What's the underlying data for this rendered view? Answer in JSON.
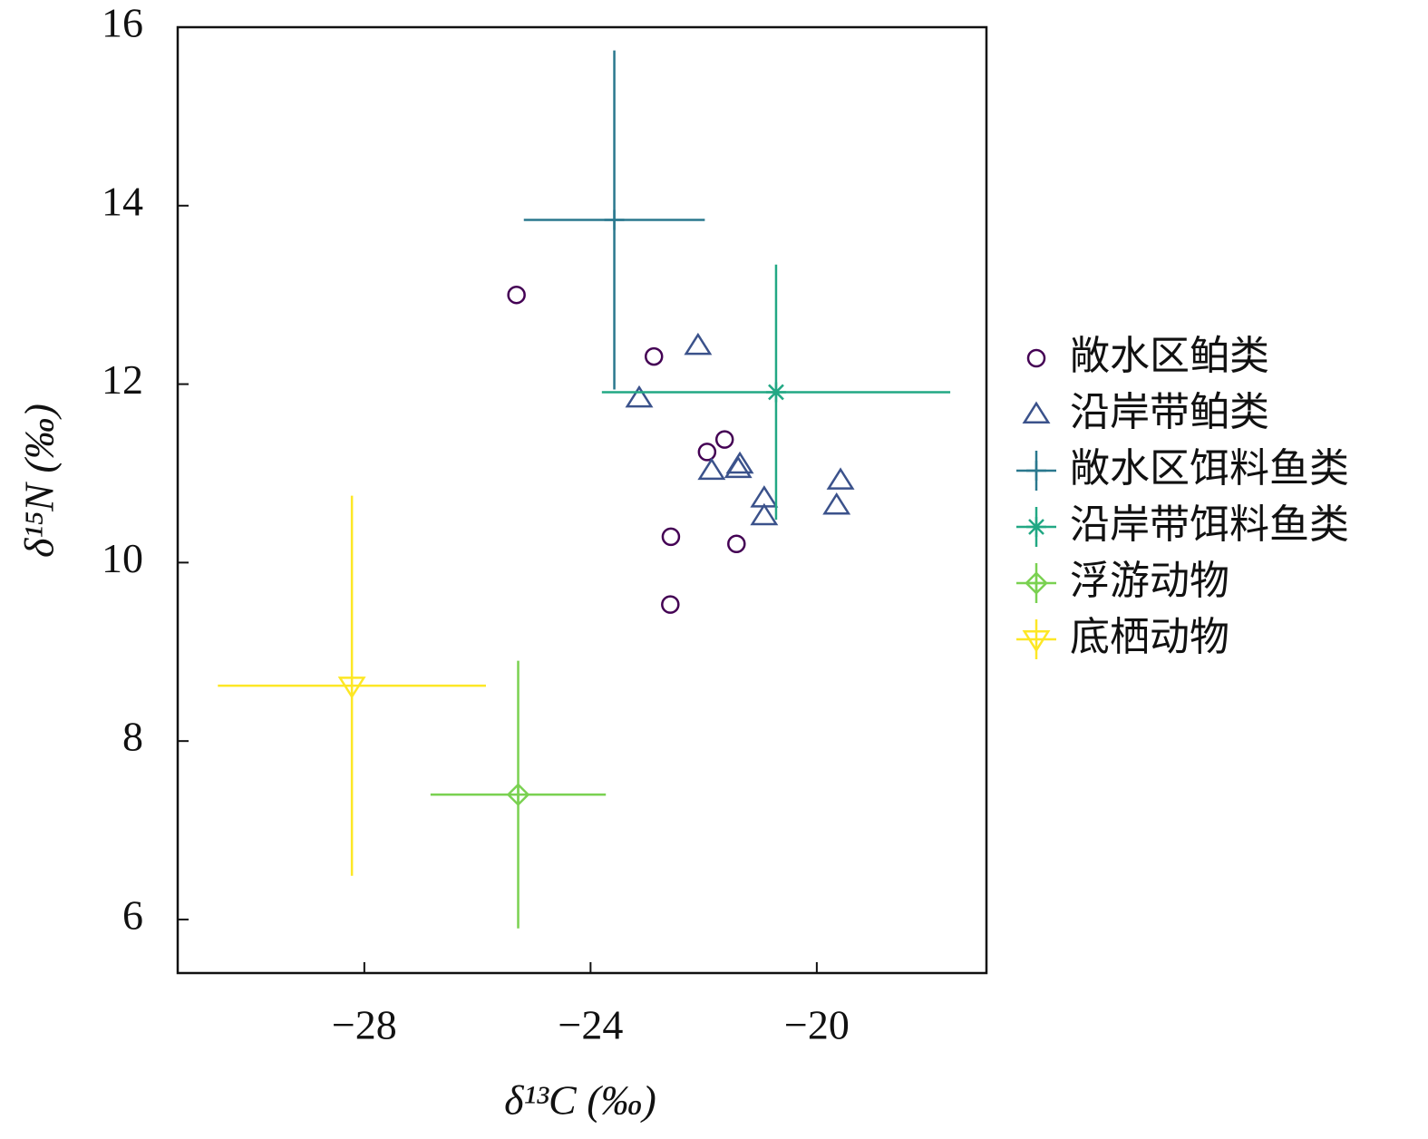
{
  "chart_data": {
    "type": "scatter",
    "x_label": "δ¹³C (‰)",
    "y_label": "δ¹⁵N (‰)",
    "xlim": [
      -31.3,
      -17
    ],
    "ylim": [
      5.4,
      16
    ],
    "xticks": [
      {
        "value": -28,
        "label": "−28"
      },
      {
        "value": -24,
        "label": "−24"
      },
      {
        "value": -20,
        "label": "−20"
      }
    ],
    "yticks": [
      6,
      8,
      10,
      12,
      14,
      16
    ],
    "legend": "right",
    "series": [
      {
        "name": "敞水区鲌类",
        "color": "#440154",
        "marker": "circle",
        "x": [
          -25.31,
          -22.88,
          -21.94,
          -21.63,
          -22.58,
          -21.42,
          -22.59
        ],
        "values": [
          13.0,
          12.31,
          11.24,
          11.38,
          10.29,
          10.21,
          9.53
        ]
      },
      {
        "name": "沿岸带鲌类",
        "color": "#3b528b",
        "marker": "triangle-up",
        "x": [
          -22.1,
          -23.14,
          -21.86,
          -21.36,
          -21.39,
          -20.93,
          -20.93,
          -19.58,
          -19.65
        ],
        "values": [
          12.43,
          11.84,
          11.03,
          11.1,
          11.05,
          10.72,
          10.52,
          10.92,
          10.64
        ]
      },
      {
        "name": "敞水区饵料鱼类",
        "color": "#2a788e",
        "marker": "plus",
        "x": [
          -23.58
        ],
        "values": [
          13.84
        ],
        "xerr": [
          1.6
        ],
        "yerr": [
          1.9
        ]
      },
      {
        "name": "沿岸带饵料鱼类",
        "color": "#22a884",
        "marker": "asterisk",
        "x": [
          -20.72
        ],
        "values": [
          11.91
        ],
        "xerr": [
          3.08
        ],
        "yerr": [
          1.43
        ]
      },
      {
        "name": "浮游动物",
        "color": "#7ad151",
        "marker": "diamond",
        "x": [
          -25.28
        ],
        "values": [
          7.4
        ],
        "xerr": [
          1.55
        ],
        "yerr": [
          1.5
        ]
      },
      {
        "name": "底栖动物",
        "color": "#fde725",
        "marker": "triangle-down",
        "x": [
          -28.22
        ],
        "values": [
          8.62
        ],
        "xerr": [
          2.37
        ],
        "yerr": [
          2.13
        ]
      }
    ]
  }
}
